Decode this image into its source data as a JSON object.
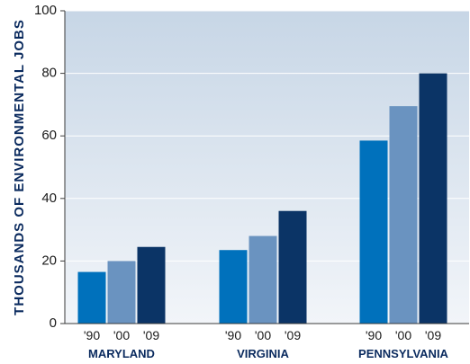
{
  "chart_data": {
    "type": "bar",
    "title": "",
    "xlabel": "",
    "ylabel": "THOUSANDS OF ENVIRONMENTAL JOBS",
    "ylim": [
      0,
      100
    ],
    "yticks": [
      0,
      20,
      40,
      60,
      80,
      100
    ],
    "grid": true,
    "legend": "none",
    "groups": [
      {
        "name": "MARYLAND",
        "bars": [
          {
            "label": "'90",
            "value": 16.5
          },
          {
            "label": "'00",
            "value": 20
          },
          {
            "label": "'09",
            "value": 24.5
          }
        ]
      },
      {
        "name": "VIRGINIA",
        "bars": [
          {
            "label": "'90",
            "value": 23.5
          },
          {
            "label": "'00",
            "value": 28
          },
          {
            "label": "'09",
            "value": 36
          }
        ]
      },
      {
        "name": "PENNSYLVANIA",
        "bars": [
          {
            "label": "'90",
            "value": 58.5
          },
          {
            "label": "'00",
            "value": 69.5
          },
          {
            "label": "'09",
            "value": 80
          }
        ]
      }
    ],
    "bar_colors": [
      "#0071bc",
      "#6a93c0",
      "#0b3466"
    ],
    "background_top": "#c7d6e6",
    "background_bottom": "#f2f5f9",
    "grid_color": "#ffffff"
  }
}
